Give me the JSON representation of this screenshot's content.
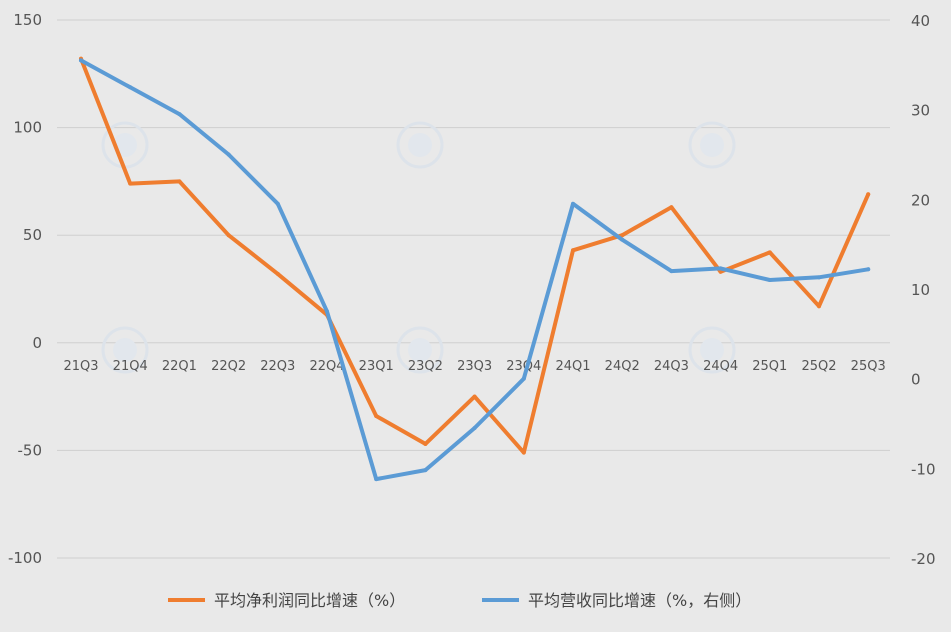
{
  "chart_data": {
    "type": "line",
    "categories": [
      "21Q3",
      "21Q4",
      "22Q1",
      "22Q2",
      "22Q3",
      "22Q4",
      "23Q1",
      "23Q2",
      "23Q3",
      "23Q4",
      "24Q1",
      "24Q2",
      "24Q3",
      "24Q4",
      "25Q1",
      "25Q2",
      "25Q3"
    ],
    "series": [
      {
        "name": "平均净利润同比增速（%）",
        "axis": "left",
        "color": "#ef7d2f",
        "values": [
          132,
          74,
          75,
          50,
          32,
          13,
          -34,
          -47,
          -25,
          -51,
          43,
          50,
          63,
          33,
          42,
          17,
          69
        ]
      },
      {
        "name": "平均营收同比增速（%，右侧）",
        "axis": "right",
        "color": "#5b9bd5",
        "values": [
          35.5,
          32.5,
          29.5,
          25,
          19.5,
          7.5,
          -11.2,
          -10.2,
          -5.5,
          0,
          19.5,
          15.5,
          12,
          12.3,
          11,
          11.3,
          12.2
        ]
      }
    ],
    "y_left": {
      "min": -100,
      "max": 150,
      "ticks": [
        150,
        100,
        50,
        0,
        -50,
        -100
      ]
    },
    "y_right": {
      "min": -20,
      "max": 40,
      "ticks": [
        40,
        30,
        20,
        10,
        0,
        -10,
        -20
      ]
    },
    "grid": true,
    "legend_position": "bottom"
  }
}
